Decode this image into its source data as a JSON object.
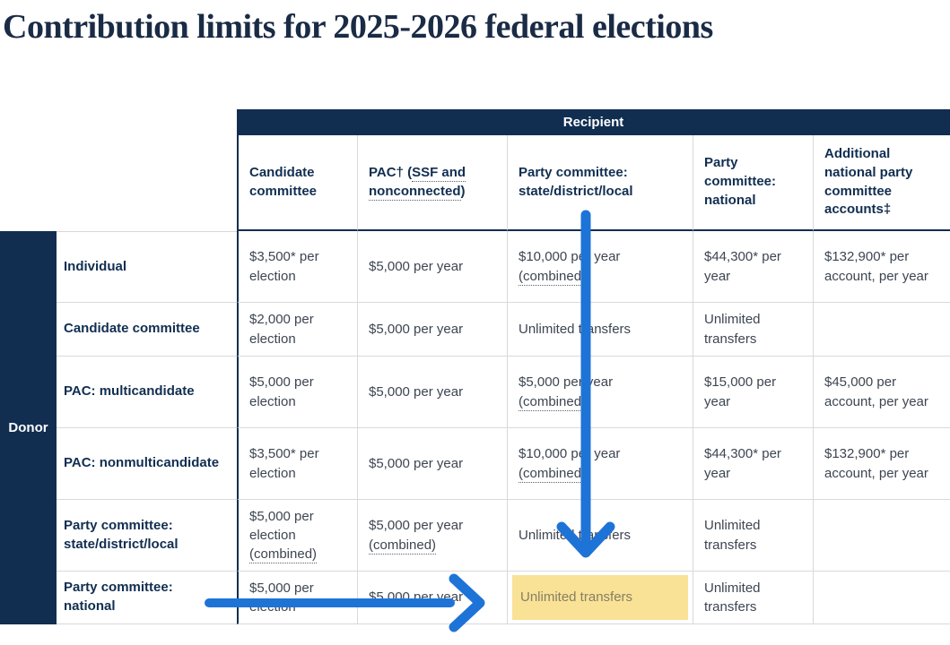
{
  "page": {
    "title": "Contribution limits for 2025-2026 federal elections"
  },
  "colors": {
    "navy": "#112e51",
    "arrow_blue": "#1e73d7",
    "highlight_yellow": "#f9e196",
    "cell_text": "#3d4551",
    "border_light": "#d9d9d9",
    "highlight_text": "#857f63"
  },
  "table": {
    "recipient_label": "Recipient",
    "donor_label": "Donor",
    "columns": [
      {
        "name": "candidate-committee",
        "segments": [
          {
            "t": "Candidate committee"
          }
        ]
      },
      {
        "name": "pac-ssf-nonconnected",
        "segments": [
          {
            "t": "PAC† ("
          },
          {
            "t": "SSF and nonconnected",
            "dotted": true
          },
          {
            "t": ")"
          }
        ]
      },
      {
        "name": "party-committee-state-district-local",
        "segments": [
          {
            "t": "Party committee: state/district/local"
          }
        ]
      },
      {
        "name": "party-committee-national",
        "segments": [
          {
            "t": "Party committee: national"
          }
        ]
      },
      {
        "name": "additional-national-party-accounts",
        "segments": [
          {
            "t": "Additional national party committee accounts‡"
          }
        ]
      }
    ],
    "rows": [
      {
        "label": "Individual",
        "cells": [
          [
            {
              "t": "$3,500* per election"
            }
          ],
          [
            {
              "t": "$5,000 per year"
            }
          ],
          [
            {
              "t": "$10,000 per year "
            },
            {
              "t": "(combined)",
              "dotted": true
            }
          ],
          [
            {
              "t": "$44,300* per year"
            }
          ],
          [
            {
              "t": "$132,900* per account, per year"
            }
          ]
        ]
      },
      {
        "label": "Candidate committee",
        "cells": [
          [
            {
              "t": "$2,000 per election"
            }
          ],
          [
            {
              "t": "$5,000 per year"
            }
          ],
          [
            {
              "t": "Unlimited transfers"
            }
          ],
          [
            {
              "t": "Unlimited transfers"
            }
          ],
          []
        ]
      },
      {
        "label": "PAC: multicandidate",
        "cells": [
          [
            {
              "t": "$5,000 per election"
            }
          ],
          [
            {
              "t": "$5,000 per year"
            }
          ],
          [
            {
              "t": "$5,000 per year "
            },
            {
              "t": "(combined)",
              "dotted": true
            }
          ],
          [
            {
              "t": "$15,000 per year"
            }
          ],
          [
            {
              "t": "$45,000 per account, per year"
            }
          ]
        ]
      },
      {
        "label": "PAC: nonmulticandidate",
        "cells": [
          [
            {
              "t": "$3,500* per election"
            }
          ],
          [
            {
              "t": "$5,000 per year"
            }
          ],
          [
            {
              "t": "$10,000 per year "
            },
            {
              "t": "(combined)",
              "dotted": true
            }
          ],
          [
            {
              "t": "$44,300* per year"
            }
          ],
          [
            {
              "t": "$132,900* per account, per year"
            }
          ]
        ]
      },
      {
        "label": "Party committee: state/district/local",
        "cells": [
          [
            {
              "t": "$5,000 per election "
            },
            {
              "t": "(combined)",
              "dotted": true
            }
          ],
          [
            {
              "t": "$5,000 per year "
            },
            {
              "t": "(combined)",
              "dotted": true
            }
          ],
          [
            {
              "t": "Unlimited transfers"
            }
          ],
          [
            {
              "t": "Unlimited transfers"
            }
          ],
          []
        ]
      },
      {
        "label": "Party committee: national",
        "cells": [
          [
            {
              "t": "$5,000 per election"
            },
            {
              "t": "***",
              "sup": true
            }
          ],
          [
            {
              "t": "$5,000 per year"
            }
          ],
          [
            {
              "t": "Unlimited transfers"
            }
          ],
          [
            {
              "t": "Unlimited transfers"
            }
          ],
          []
        ]
      }
    ],
    "highlight": {
      "row": 5,
      "col": 2
    }
  },
  "annotations": {
    "down_arrow": "points from Party committee: state/district/local recipient column down to Unlimited transfers",
    "right_arrow": "points from Party committee: national donor row right to highlighted Unlimited transfers"
  }
}
